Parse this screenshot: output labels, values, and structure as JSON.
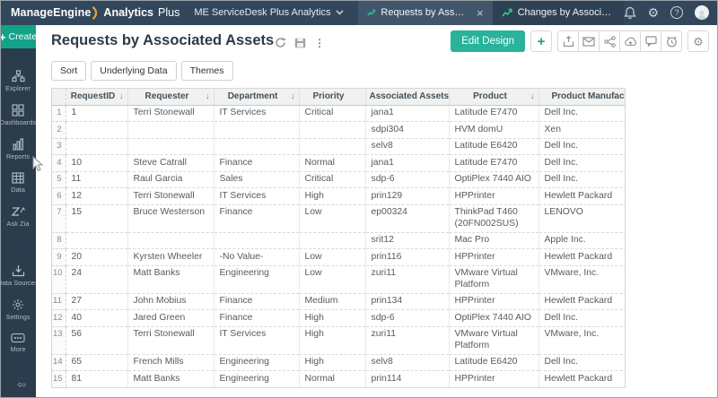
{
  "colors": {
    "accent_teal": "#12a287",
    "edit_design_teal": "#28b39a",
    "topbar_bg": "#33475c",
    "sidebar_bg": "#2b3c4d",
    "active_tab_bg": "#41566b",
    "trend_icon_green": "#2ec98f"
  },
  "topbar": {
    "logo_primary": "ManageEngine",
    "logo_secondary": "Analytics",
    "logo_tertiary": "Plus",
    "workspace": "ME ServiceDesk Plus Analytics",
    "tabs": [
      {
        "label": "Requests by Associate...",
        "active": true,
        "closable": true
      },
      {
        "label": "Changes by Associated...",
        "active": false,
        "closable": false
      }
    ]
  },
  "sidebar": {
    "create_label": "Create",
    "items": [
      {
        "label": "Explorer"
      },
      {
        "label": "Dashboards"
      },
      {
        "label": "Reports"
      },
      {
        "label": "Data"
      },
      {
        "label": "Ask Zia"
      },
      {
        "label": "Data Sources"
      },
      {
        "label": "Settings"
      },
      {
        "label": "More"
      }
    ]
  },
  "main": {
    "title": "Requests by Associated Assets",
    "actions": {
      "sort": "Sort",
      "underlying_data": "Underlying Data",
      "themes": "Themes"
    },
    "edit_design_label": "Edit Design"
  },
  "table": {
    "sort_icon": "↓",
    "columns": [
      {
        "label": "RequestID",
        "sortable": true
      },
      {
        "label": "Requester",
        "sortable": true
      },
      {
        "label": "Department",
        "sortable": true
      },
      {
        "label": "Priority",
        "sortable": false
      },
      {
        "label": "Associated Assets",
        "sortable": true
      },
      {
        "label": "Product",
        "sortable": true
      },
      {
        "label": "Product Manufac",
        "sortable": true
      }
    ],
    "rows": [
      {
        "num": 1,
        "cells": [
          "1",
          "Terri Stonewall",
          "IT Services",
          "Critical",
          "jana1",
          "Latitude E7470",
          "Dell Inc."
        ]
      },
      {
        "num": 2,
        "cells": [
          "",
          "",
          "",
          "",
          "sdpi304",
          "HVM domU",
          "Xen"
        ]
      },
      {
        "num": 3,
        "cells": [
          "",
          "",
          "",
          "",
          "selv8",
          "Latitude E6420",
          "Dell Inc."
        ]
      },
      {
        "num": 4,
        "cells": [
          "10",
          "Steve Catrall",
          "Finance",
          "Normal",
          "jana1",
          "Latitude E7470",
          "Dell Inc."
        ]
      },
      {
        "num": 5,
        "cells": [
          "11",
          "Raul Garcia",
          "Sales",
          "Critical",
          "sdp-6",
          "OptiPlex 7440 AIO",
          "Dell Inc."
        ]
      },
      {
        "num": 6,
        "cells": [
          "12",
          "Terri Stonewall",
          "IT Services",
          "High",
          "prin129",
          "HPPrinter",
          "Hewlett Packard"
        ]
      },
      {
        "num": 7,
        "cells": [
          "15",
          "Bruce Westerson",
          "Finance",
          "Low",
          "ep00324",
          "ThinkPad T460 (20FN002SUS)",
          "LENOVO"
        ]
      },
      {
        "num": 8,
        "cells": [
          "",
          "",
          "",
          "",
          "srit12",
          "Mac Pro",
          "Apple Inc."
        ]
      },
      {
        "num": 9,
        "cells": [
          "20",
          "Kyrsten Wheeler",
          "-No Value-",
          "Low",
          "prin116",
          "HPPrinter",
          "Hewlett Packard"
        ]
      },
      {
        "num": 10,
        "cells": [
          "24",
          "Matt Banks",
          "Engineering",
          "Low",
          "zuri11",
          "VMware Virtual Platform",
          "VMware, Inc."
        ]
      },
      {
        "num": 11,
        "cells": [
          "27",
          "John Mobius",
          "Finance",
          "Medium",
          "prin134",
          "HPPrinter",
          "Hewlett Packard"
        ]
      },
      {
        "num": 12,
        "cells": [
          "40",
          "Jared Green",
          "Finance",
          "High",
          "sdp-6",
          "OptiPlex 7440 AIO",
          "Dell Inc."
        ]
      },
      {
        "num": 13,
        "cells": [
          "56",
          "Terri Stonewall",
          "IT Services",
          "High",
          "zuri11",
          "VMware Virtual Platform",
          "VMware, Inc."
        ]
      },
      {
        "num": 14,
        "cells": [
          "65",
          "French Mills",
          "Engineering",
          "High",
          "selv8",
          "Latitude E6420",
          "Dell Inc."
        ]
      },
      {
        "num": 15,
        "cells": [
          "81",
          "Matt Banks",
          "Engineering",
          "Normal",
          "prin114",
          "HPPrinter",
          "Hewlett Packard"
        ]
      }
    ]
  }
}
